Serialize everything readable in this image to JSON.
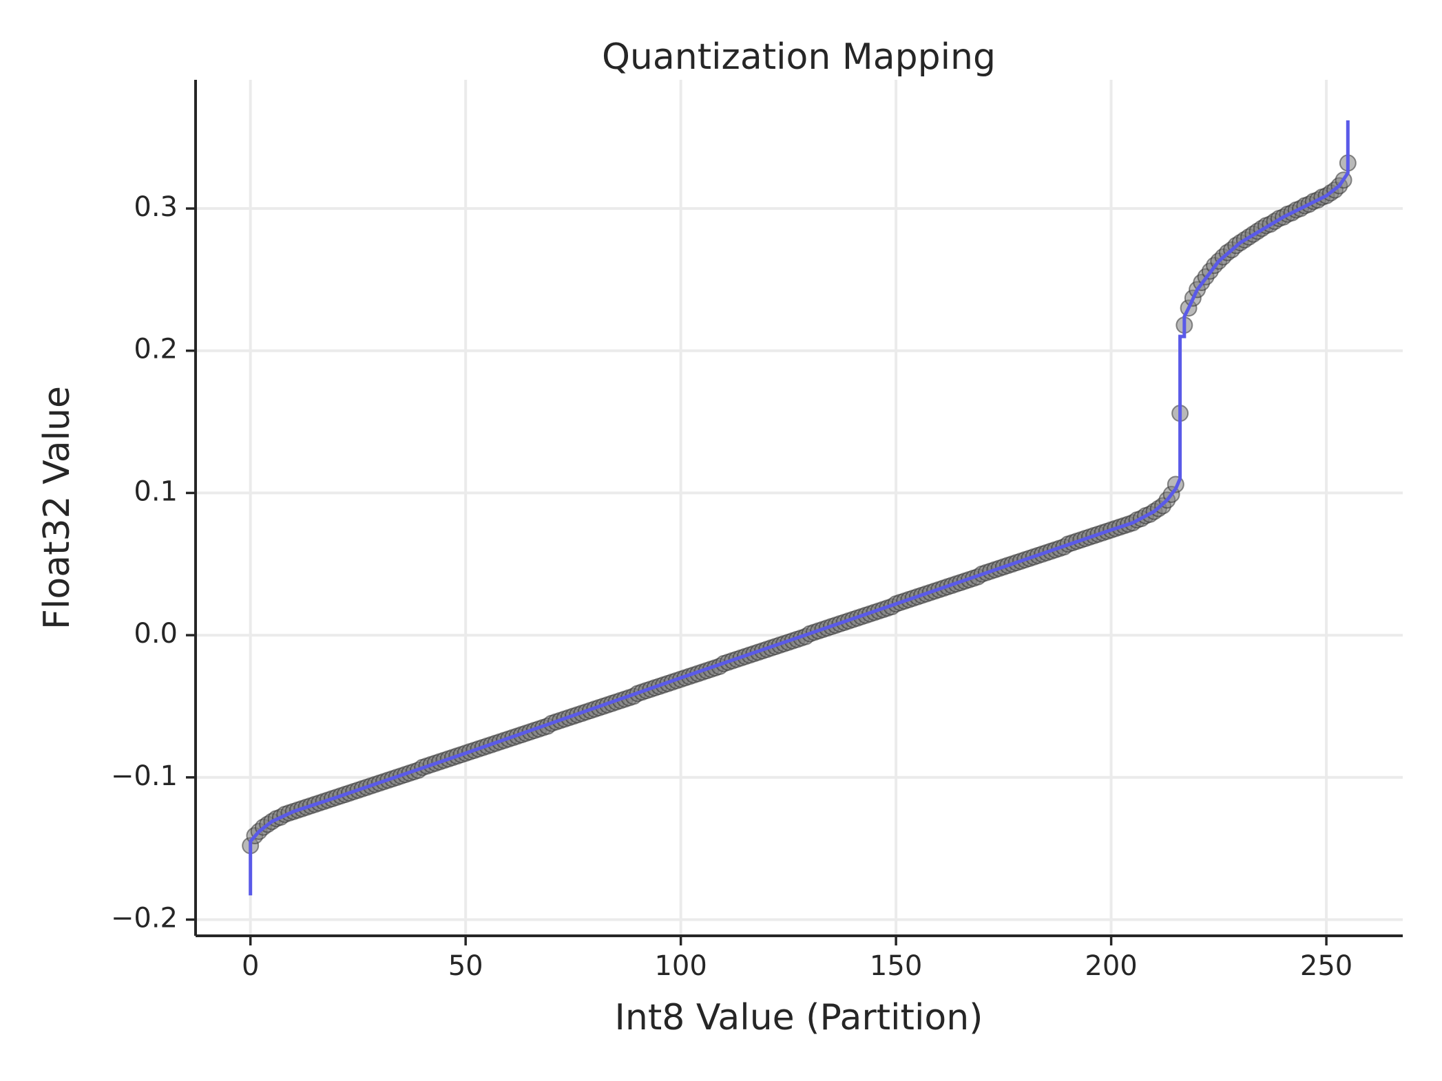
{
  "chart_data": {
    "type": "scatter",
    "title": "Quantization Mapping",
    "xlabel": "Int8 Value (Partition)",
    "ylabel": "Float32 Value",
    "xlim": [
      -12.75,
      267.75
    ],
    "ylim": [
      -0.2114,
      0.3905
    ],
    "xticks": [
      0,
      50,
      100,
      150,
      200,
      250
    ],
    "yticks": [
      {
        "value": -0.2,
        "label": "−0.2"
      },
      {
        "value": -0.1,
        "label": "−0.1"
      },
      {
        "value": 0,
        "label": "0.0"
      },
      0.1,
      0.2,
      0.3
    ],
    "grid": true,
    "series": [
      {
        "type": "scatter",
        "color": "#808080",
        "x": [
          0,
          1,
          2,
          3,
          4,
          5,
          6,
          7,
          8,
          9,
          10,
          11,
          12,
          13,
          14,
          15,
          16,
          17,
          18,
          19,
          20,
          21,
          22,
          23,
          24,
          25,
          26,
          27,
          28,
          29,
          30,
          31,
          32,
          33,
          34,
          35,
          36,
          37,
          38,
          39,
          40,
          41,
          42,
          43,
          44,
          45,
          46,
          47,
          48,
          49,
          50,
          51,
          52,
          53,
          54,
          55,
          56,
          57,
          58,
          59,
          60,
          61,
          62,
          63,
          64,
          65,
          66,
          67,
          68,
          69,
          70,
          71,
          72,
          73,
          74,
          75,
          76,
          77,
          78,
          79,
          80,
          81,
          82,
          83,
          84,
          85,
          86,
          87,
          88,
          89,
          90,
          91,
          92,
          93,
          94,
          95,
          96,
          97,
          98,
          99,
          100,
          101,
          102,
          103,
          104,
          105,
          106,
          107,
          108,
          109,
          110,
          111,
          112,
          113,
          114,
          115,
          116,
          117,
          118,
          119,
          120,
          121,
          122,
          123,
          124,
          125,
          126,
          127,
          128,
          129,
          130,
          131,
          132,
          133,
          134,
          135,
          136,
          137,
          138,
          139,
          140,
          141,
          142,
          143,
          144,
          145,
          146,
          147,
          148,
          149,
          150,
          151,
          152,
          153,
          154,
          155,
          156,
          157,
          158,
          159,
          160,
          161,
          162,
          163,
          164,
          165,
          166,
          167,
          168,
          169,
          170,
          171,
          172,
          173,
          174,
          175,
          176,
          177,
          178,
          179,
          180,
          181,
          182,
          183,
          184,
          185,
          186,
          187,
          188,
          189,
          190,
          191,
          192,
          193,
          194,
          195,
          196,
          197,
          198,
          199,
          200,
          201,
          202,
          203,
          204,
          205,
          206,
          207,
          208,
          209,
          210,
          211,
          212,
          213,
          214,
          215,
          216,
          217,
          218,
          219,
          220,
          221,
          222,
          223,
          224,
          225,
          226,
          227,
          228,
          229,
          230,
          231,
          232,
          233,
          234,
          235,
          236,
          237,
          238,
          239,
          240,
          241,
          242,
          243,
          244,
          245,
          246,
          247,
          248,
          249,
          250,
          251,
          252,
          253,
          254,
          255
        ],
        "values": [
          -0.148,
          -0.141,
          -0.138,
          -0.135,
          -0.133,
          -0.131,
          -0.129,
          -0.128,
          -0.126,
          -0.125,
          -0.124,
          -0.123,
          -0.122,
          -0.121,
          -0.12,
          -0.119,
          -0.118,
          -0.117,
          -0.116,
          -0.115,
          -0.114,
          -0.113,
          -0.112,
          -0.111,
          -0.11,
          -0.109,
          -0.108,
          -0.107,
          -0.106,
          -0.105,
          -0.104,
          -0.103,
          -0.102,
          -0.101,
          -0.1,
          -0.099,
          -0.098,
          -0.097,
          -0.096,
          -0.095,
          -0.093,
          -0.092,
          -0.091,
          -0.09,
          -0.089,
          -0.088,
          -0.087,
          -0.086,
          -0.085,
          -0.084,
          -0.083,
          -0.082,
          -0.081,
          -0.08,
          -0.079,
          -0.078,
          -0.077,
          -0.076,
          -0.075,
          -0.074,
          -0.073,
          -0.072,
          -0.071,
          -0.07,
          -0.069,
          -0.068,
          -0.067,
          -0.066,
          -0.065,
          -0.064,
          -0.062,
          -0.061,
          -0.06,
          -0.059,
          -0.058,
          -0.057,
          -0.056,
          -0.055,
          -0.054,
          -0.053,
          -0.052,
          -0.051,
          -0.05,
          -0.049,
          -0.048,
          -0.047,
          -0.046,
          -0.045,
          -0.044,
          -0.043,
          -0.041,
          -0.04,
          -0.039,
          -0.038,
          -0.037,
          -0.036,
          -0.035,
          -0.034,
          -0.033,
          -0.032,
          -0.031,
          -0.03,
          -0.029,
          -0.028,
          -0.027,
          -0.026,
          -0.025,
          -0.024,
          -0.023,
          -0.022,
          -0.02,
          -0.019,
          -0.018,
          -0.017,
          -0.016,
          -0.015,
          -0.014,
          -0.013,
          -0.012,
          -0.011,
          -0.01,
          -0.009,
          -0.008,
          -0.007,
          -0.006,
          -0.005,
          -0.004,
          -0.003,
          -0.002,
          -0.001,
          0.001,
          0.002,
          0.003,
          0.004,
          0.005,
          0.006,
          0.007,
          0.008,
          0.009,
          0.01,
          0.011,
          0.012,
          0.013,
          0.014,
          0.015,
          0.016,
          0.017,
          0.018,
          0.019,
          0.02,
          0.022,
          0.023,
          0.024,
          0.025,
          0.026,
          0.027,
          0.028,
          0.029,
          0.03,
          0.031,
          0.032,
          0.033,
          0.034,
          0.035,
          0.036,
          0.037,
          0.038,
          0.039,
          0.04,
          0.041,
          0.043,
          0.044,
          0.045,
          0.046,
          0.047,
          0.048,
          0.049,
          0.05,
          0.051,
          0.052,
          0.053,
          0.054,
          0.055,
          0.056,
          0.057,
          0.058,
          0.059,
          0.06,
          0.061,
          0.062,
          0.064,
          0.065,
          0.066,
          0.067,
          0.068,
          0.069,
          0.07,
          0.071,
          0.072,
          0.073,
          0.074,
          0.075,
          0.076,
          0.077,
          0.078,
          0.079,
          0.081,
          0.082,
          0.084,
          0.085,
          0.087,
          0.089,
          0.091,
          0.095,
          0.099,
          0.106,
          0.156,
          0.218,
          0.23,
          0.237,
          0.243,
          0.248,
          0.252,
          0.256,
          0.26,
          0.263,
          0.266,
          0.269,
          0.271,
          0.274,
          0.276,
          0.278,
          0.28,
          0.282,
          0.284,
          0.286,
          0.288,
          0.289,
          0.291,
          0.293,
          0.294,
          0.296,
          0.297,
          0.299,
          0.3,
          0.302,
          0.303,
          0.305,
          0.306,
          0.308,
          0.309,
          0.311,
          0.313,
          0.316,
          0.32,
          0.332
        ]
      },
      {
        "type": "line",
        "color": "#5a5ae8",
        "x": [
          0,
          0,
          2,
          5,
          10,
          20,
          50,
          100,
          150,
          200,
          205,
          210,
          213,
          215,
          216,
          216,
          217,
          217,
          218,
          220,
          225,
          230,
          240,
          250,
          253,
          255,
          255
        ],
        "values": [
          -0.183,
          -0.145,
          -0.138,
          -0.131,
          -0.124,
          -0.114,
          -0.083,
          -0.03,
          0.022,
          0.074,
          0.079,
          0.087,
          0.095,
          0.103,
          0.11,
          0.21,
          0.21,
          0.224,
          0.23,
          0.243,
          0.263,
          0.276,
          0.294,
          0.309,
          0.316,
          0.325,
          0.362
        ]
      }
    ]
  }
}
